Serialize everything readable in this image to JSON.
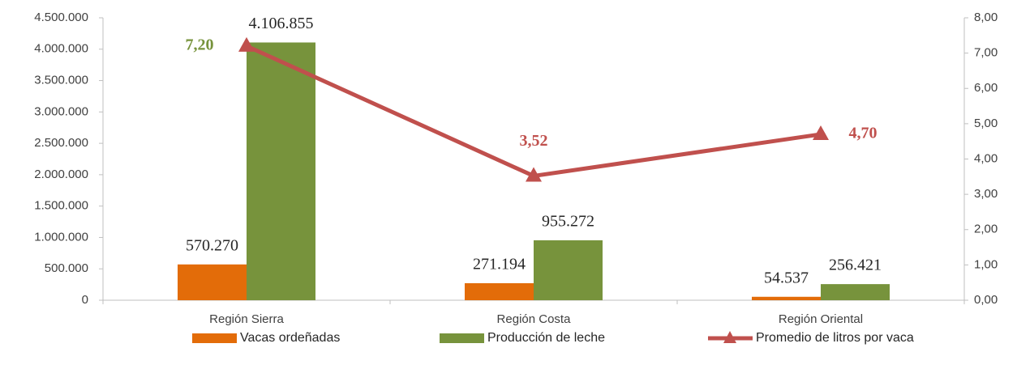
{
  "chart_data": {
    "type": "bar-line",
    "categories": [
      "Región Sierra",
      "Región Costa",
      "Región Oriental"
    ],
    "series": [
      {
        "name": "Vacas ordeñadas",
        "type": "bar",
        "color": "#e36c09",
        "values": [
          570270,
          271194,
          54537
        ],
        "value_labels": [
          "570.270",
          "271.194",
          "54.537"
        ]
      },
      {
        "name": "Producción de leche",
        "type": "bar",
        "color": "#77933c",
        "values": [
          4106855,
          955272,
          256421
        ],
        "value_labels": [
          "4.106.855",
          "955.272",
          "256.421"
        ]
      },
      {
        "name": "Promedio de litros por vaca",
        "type": "line",
        "axis": "y2",
        "color": "#c0504d",
        "values": [
          7.2,
          3.52,
          4.7
        ],
        "value_labels": [
          "7,20",
          "3,52",
          "4,70"
        ],
        "value_label_colors": [
          "#77933c",
          "#c0504d",
          "#c0504d"
        ]
      }
    ],
    "ylim": [
      0,
      4500000
    ],
    "yticks": [
      0,
      {
        "value": 500000,
        "label": "500.000"
      },
      {
        "value": 1000000,
        "label": "1.000.000"
      },
      {
        "value": 1500000,
        "label": "1.500.000"
      },
      {
        "value": 2000000,
        "label": "2.000.000"
      },
      {
        "value": 2500000,
        "label": "2.500.000"
      },
      {
        "value": 3000000,
        "label": "3.000.000"
      },
      {
        "value": 3500000,
        "label": "3.500.000"
      },
      {
        "value": 4000000,
        "label": "4.000.000"
      },
      {
        "value": 4500000,
        "label": "4.500.000"
      }
    ],
    "y2lim": [
      0,
      8
    ],
    "y2ticks": [
      {
        "value": 0,
        "label": "0,00"
      },
      {
        "value": 1,
        "label": "1,00"
      },
      {
        "value": 2,
        "label": "2,00"
      },
      {
        "value": 3,
        "label": "3,00"
      },
      {
        "value": 4,
        "label": "4,00"
      },
      {
        "value": 5,
        "label": "5,00"
      },
      {
        "value": 6,
        "label": "6,00"
      },
      {
        "value": 7,
        "label": "7,00"
      },
      {
        "value": 8,
        "label": "8,00"
      }
    ],
    "legend": "bottom"
  }
}
